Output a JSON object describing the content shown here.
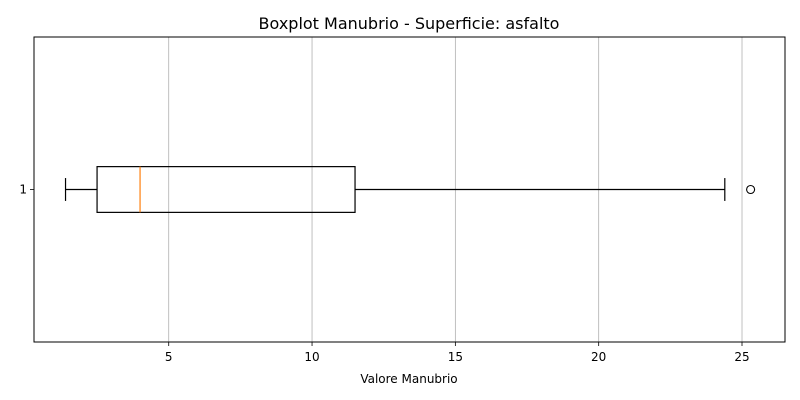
{
  "chart_data": {
    "type": "boxplot",
    "orientation": "horizontal",
    "title": "Boxplot Manubrio - Superficie: asfalto",
    "xlabel": "Valore Manubrio",
    "ylabel": "",
    "xlim": [
      0.3,
      26.5
    ],
    "xticks": [
      5,
      10,
      15,
      20,
      25
    ],
    "grid": "x",
    "boxes": [
      {
        "label": "1",
        "whisker_low": 1.4,
        "q1": 2.5,
        "median": 4.0,
        "q3": 11.5,
        "whisker_high": 24.4,
        "outliers": [
          25.3
        ]
      }
    ],
    "colors": {
      "box": "#000000",
      "median": "#ff7f0e",
      "grid": "#b0b0b0",
      "outlier_edge": "#000000"
    }
  }
}
